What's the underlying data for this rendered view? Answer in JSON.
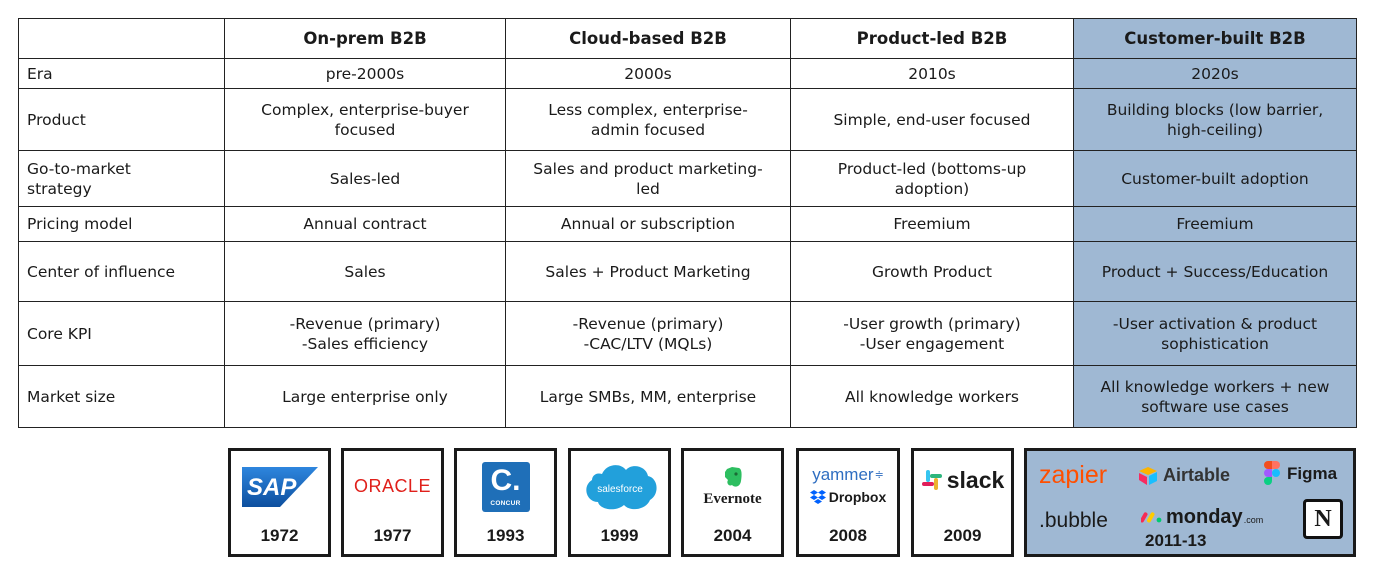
{
  "table": {
    "headers": [
      "",
      "On-prem B2B",
      "Cloud-based B2B",
      "Product-led B2B",
      "Customer-built B2B"
    ],
    "rows": [
      {
        "label": "Era",
        "cells": [
          "pre-2000s",
          "2000s",
          "2010s",
          "2020s"
        ]
      },
      {
        "label": "Product",
        "cells": [
          "Complex, enterprise-buyer\nfocused",
          "Less complex, enterprise-\nadmin focused",
          "Simple, end-user focused",
          "Building blocks (low barrier,\nhigh-ceiling)"
        ]
      },
      {
        "label": "Go-to-market\nstrategy",
        "cells": [
          "Sales-led",
          "Sales and product marketing-\nled",
          "Product-led (bottoms-up\nadoption)",
          "Customer-built adoption"
        ]
      },
      {
        "label": "Pricing model",
        "cells": [
          "Annual contract",
          "Annual or subscription",
          "Freemium",
          "Freemium"
        ]
      },
      {
        "label": "Center of influence",
        "cells": [
          "Sales",
          "Sales + Product Marketing",
          "Growth Product",
          "Product + Success/Education"
        ]
      },
      {
        "label": "Core KPI",
        "cells": [
          "-Revenue (primary)\n-Sales efficiency",
          "-Revenue (primary)\n-CAC/LTV (MQLs)",
          "-User growth (primary)\n-User engagement",
          "-User activation & product\nsophistication"
        ]
      },
      {
        "label": "Market size",
        "cells": [
          "Large enterprise only",
          "Large SMBs, MM, enterprise",
          "All knowledge workers",
          "All knowledge workers + new\nsoftware use cases"
        ]
      }
    ],
    "highlight_color": "#9fb8d3"
  },
  "logos": {
    "sap": {
      "text": "SAP",
      "year": "1972"
    },
    "oracle": {
      "text": "ORACLE",
      "year": "1977"
    },
    "concur": {
      "text": "C.",
      "sub": "CONCUR",
      "year": "1993"
    },
    "salesforce": {
      "text": "salesforce",
      "year": "1999"
    },
    "evernote": {
      "text": "Evernote",
      "year": "2004"
    },
    "yammer_dropbox": {
      "text1": "yammer",
      "text2": "Dropbox",
      "year": "2008"
    },
    "slack": {
      "text": "slack",
      "year": "2009"
    },
    "group": {
      "zapier": "zapier",
      "airtable": "Airtable",
      "figma": "Figma",
      "bubble": ".bubble",
      "monday": "monday",
      "monday_suffix": ".com",
      "notion": "N",
      "year": "2011-13"
    }
  },
  "colors": {
    "sap_blue": "#1b6fc7",
    "oracle_red": "#e0201b",
    "concur_blue": "#1f6fb8",
    "salesforce_blue": "#22a0db",
    "evernote_green": "#2dbe60",
    "yammer_blue": "#2f6ec1",
    "dropbox_blue": "#0061fe",
    "zapier_orange": "#ff4f00"
  }
}
